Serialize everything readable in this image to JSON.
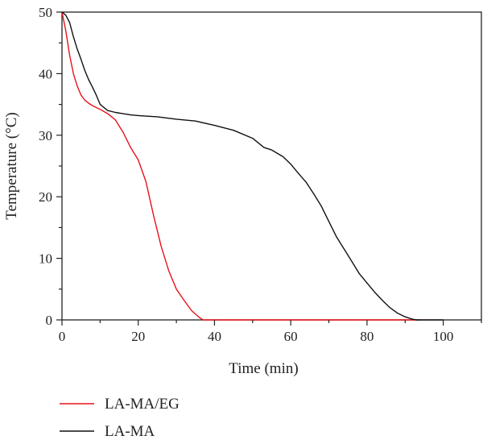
{
  "chart_data": {
    "type": "line",
    "xlabel": "Time (min)",
    "ylabel": "Temperature (°C)",
    "xlim": [
      0,
      110
    ],
    "ylim": [
      0,
      50
    ],
    "x_ticks": [
      0,
      20,
      40,
      60,
      80,
      100
    ],
    "y_ticks": [
      0,
      10,
      20,
      30,
      40,
      50
    ],
    "grid": false,
    "legend_position": "bottom-left, below plot",
    "series": [
      {
        "name": "LA-MA/EG",
        "color": "#e8121a",
        "x": [
          0,
          1,
          2,
          3,
          4,
          5,
          6,
          7,
          8,
          10,
          12,
          14,
          16,
          18,
          20,
          22,
          24,
          26,
          28,
          30,
          32,
          34,
          36,
          37,
          38,
          40,
          60,
          80,
          94
        ],
        "y": [
          50,
          47,
          43,
          40,
          38,
          36.5,
          35.7,
          35.2,
          34.8,
          34.2,
          33.5,
          32.5,
          30.5,
          28,
          26,
          22.5,
          17,
          12,
          8,
          5,
          3.2,
          1.5,
          0.4,
          0,
          0,
          0,
          0,
          0,
          0
        ]
      },
      {
        "name": "LA-MA",
        "color": "#111111",
        "x": [
          0,
          1,
          2,
          3,
          4,
          5,
          6,
          7,
          8,
          9,
          10,
          12,
          14,
          16,
          18,
          20,
          22,
          25,
          30,
          35,
          40,
          45,
          50,
          53,
          55,
          58,
          60,
          62,
          64,
          66,
          68,
          70,
          72,
          74,
          76,
          78,
          80,
          82,
          84,
          86,
          88,
          90,
          92,
          93,
          94,
          95,
          100
        ],
        "y": [
          50,
          49.5,
          48.3,
          46,
          44,
          42.3,
          40.5,
          39,
          37.8,
          36.5,
          35,
          34,
          33.7,
          33.5,
          33.3,
          33.2,
          33.1,
          33,
          32.6,
          32.3,
          31.6,
          30.8,
          29.5,
          28,
          27.6,
          26.5,
          25.3,
          23.8,
          22.4,
          20.5,
          18.5,
          16,
          13.5,
          11.5,
          9.5,
          7.5,
          6,
          4.5,
          3.2,
          2,
          1.1,
          0.5,
          0.1,
          0,
          0,
          0,
          0
        ]
      }
    ]
  }
}
